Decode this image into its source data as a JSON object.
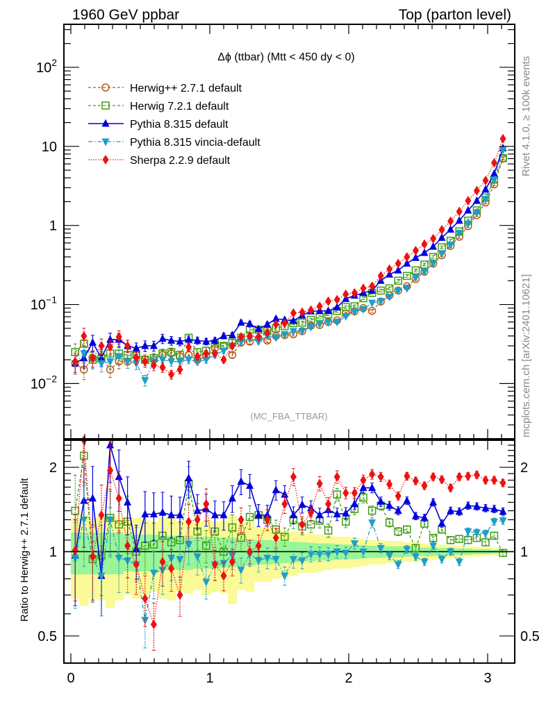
{
  "header": {
    "left": "1960 GeV ppbar",
    "right": "Top (parton level)"
  },
  "side_labels": {
    "rivet": "Rivet 4.1.0, ≥ 100k events",
    "mcplots": "mcplots.cern.ch [arXiv:2401.10621]"
  },
  "chart_data": [
    {
      "panel": "main",
      "type": "line",
      "title": "Δϕ (ttbar) (Mtt < 450 dy < 0)",
      "analysis_label": "(MC_FBA_TTBAR)",
      "xlabel": "",
      "ylabel": "",
      "xlim": [
        -0.05,
        3.195
      ],
      "ylim": [
        0.002,
        350
      ],
      "yscale": "log",
      "y_tick_labels": [
        "10^-2",
        "10^-1",
        "1",
        "10",
        "10^2"
      ],
      "y_ticks": [
        0.01,
        0.1,
        1,
        10,
        100
      ],
      "x_ticks": [
        0,
        1,
        2,
        3
      ],
      "x_tick_labels": [
        "0",
        "1",
        "2",
        "3"
      ],
      "legend_position": "top-left",
      "x": [
        0.031,
        0.094,
        0.157,
        0.22,
        0.283,
        0.346,
        0.408,
        0.471,
        0.534,
        0.597,
        0.66,
        0.723,
        0.785,
        0.848,
        0.911,
        0.974,
        1.037,
        1.1,
        1.162,
        1.225,
        1.288,
        1.351,
        1.414,
        1.476,
        1.539,
        1.602,
        1.665,
        1.728,
        1.791,
        1.853,
        1.916,
        1.979,
        2.042,
        2.105,
        2.168,
        2.231,
        2.293,
        2.356,
        2.419,
        2.482,
        2.545,
        2.608,
        2.67,
        2.733,
        2.796,
        2.859,
        2.922,
        2.985,
        3.047,
        3.11
      ],
      "series": [
        {
          "name": "Herwig++ 2.7.1 default",
          "color": "#b35a12",
          "marker": "open-circle",
          "linestyle": "dashed",
          "values": [
            0.018,
            0.015,
            0.021,
            0.022,
            0.015,
            0.019,
            0.019,
            0.023,
            0.02,
            0.02,
            0.023,
            0.024,
            0.022,
            0.023,
            0.02,
            0.022,
            0.028,
            0.03,
            0.023,
            0.033,
            0.034,
            0.037,
            0.035,
            0.04,
            0.041,
            0.042,
            0.046,
            0.054,
            0.055,
            0.06,
            0.063,
            0.077,
            0.082,
            0.09,
            0.083,
            0.109,
            0.13,
            0.15,
            0.17,
            0.21,
            0.26,
            0.33,
            0.42,
            0.55,
            0.72,
            0.98,
            1.35,
            1.95,
            3.3,
            7.0
          ]
        },
        {
          "name": "Herwig 7.2.1 default",
          "color": "#3f9b14",
          "marker": "open-square",
          "linestyle": "dashed",
          "values": [
            0.025,
            0.032,
            0.02,
            0.021,
            0.024,
            0.024,
            0.023,
            0.023,
            0.02,
            0.021,
            0.024,
            0.025,
            0.023,
            0.038,
            0.025,
            0.026,
            0.032,
            0.03,
            0.033,
            0.038,
            0.048,
            0.048,
            0.046,
            0.05,
            0.053,
            0.058,
            0.059,
            0.064,
            0.069,
            0.075,
            0.083,
            0.093,
            0.095,
            0.12,
            0.14,
            0.15,
            0.16,
            0.2,
            0.23,
            0.27,
            0.32,
            0.4,
            0.53,
            0.64,
            0.84,
            1.15,
            1.55,
            2.25,
            3.8,
            7.1
          ]
        },
        {
          "name": "Pythia 8.315 default",
          "color": "#0000dd",
          "marker": "filled-triangle-up",
          "linestyle": "solid",
          "values": [
            0.018,
            0.021,
            0.033,
            0.021,
            0.036,
            0.036,
            0.03,
            0.028,
            0.03,
            0.03,
            0.037,
            0.035,
            0.034,
            0.036,
            0.035,
            0.034,
            0.035,
            0.04,
            0.041,
            0.059,
            0.057,
            0.049,
            0.056,
            0.066,
            0.064,
            0.062,
            0.073,
            0.082,
            0.083,
            0.083,
            0.092,
            0.118,
            0.13,
            0.14,
            0.15,
            0.2,
            0.24,
            0.27,
            0.33,
            0.39,
            0.45,
            0.54,
            0.7,
            0.89,
            1.15,
            1.55,
            2.05,
            2.85,
            4.5,
            9.5
          ]
        },
        {
          "name": "Pythia 8.315 vincia-default",
          "color": "#1e9ec8",
          "marker": "filled-triangle-down",
          "linestyle": "dashdot",
          "values": [
            0.018,
            0.024,
            0.02,
            0.018,
            0.019,
            0.022,
            0.019,
            0.018,
            0.011,
            0.019,
            0.02,
            0.019,
            0.019,
            0.02,
            0.019,
            0.02,
            0.023,
            0.026,
            0.03,
            0.034,
            0.037,
            0.034,
            0.04,
            0.038,
            0.042,
            0.046,
            0.046,
            0.052,
            0.057,
            0.06,
            0.06,
            0.071,
            0.081,
            0.087,
            0.105,
            0.11,
            0.125,
            0.15,
            0.16,
            0.22,
            0.26,
            0.33,
            0.44,
            0.57,
            0.8,
            1.05,
            1.45,
            2.15,
            3.8,
            9.0
          ]
        },
        {
          "name": "Sherpa 2.2.9 default",
          "color": "#ee1111",
          "marker": "filled-diamond",
          "linestyle": "dotted",
          "values": [
            0.019,
            0.04,
            0.021,
            0.03,
            0.029,
            0.039,
            0.03,
            0.021,
            0.019,
            0.017,
            0.016,
            0.013,
            0.015,
            0.029,
            0.022,
            0.024,
            0.024,
            0.02,
            0.03,
            0.039,
            0.04,
            0.039,
            0.044,
            0.056,
            0.058,
            0.078,
            0.08,
            0.085,
            0.095,
            0.11,
            0.115,
            0.135,
            0.14,
            0.16,
            0.17,
            0.23,
            0.28,
            0.33,
            0.4,
            0.48,
            0.58,
            0.68,
            0.88,
            1.13,
            1.5,
            2.05,
            2.75,
            3.7,
            6.2,
            12.5
          ]
        }
      ]
    },
    {
      "panel": "ratio",
      "type": "line",
      "ylabel": "Ratio to Herwig++ 2.7.1 default",
      "xlim": [
        -0.05,
        3.195
      ],
      "ylim": [
        0.4,
        2.5
      ],
      "yscale": "log",
      "y_ticks": [
        0.5,
        1,
        2
      ],
      "y_tick_labels": [
        "0.5",
        "1",
        "2"
      ],
      "x_ticks": [
        0,
        1,
        2,
        3
      ],
      "x_tick_labels": [
        "0",
        "1",
        "2",
        "3"
      ],
      "reference_line": 1,
      "band_colors": {
        "inner": "#98f598",
        "outer": "#fafa96"
      },
      "band_inner_halfwidth": [
        0.17,
        0.17,
        0.17,
        0.17,
        0.17,
        0.17,
        0.15,
        0.15,
        0.15,
        0.15,
        0.14,
        0.14,
        0.14,
        0.14,
        0.13,
        0.13,
        0.13,
        0.12,
        0.12,
        0.11,
        0.11,
        0.1,
        0.1,
        0.095,
        0.09,
        0.085,
        0.08,
        0.075,
        0.07,
        0.07,
        0.065,
        0.06,
        0.06,
        0.055,
        0.05,
        0.05,
        0.045,
        0.045,
        0.04,
        0.04,
        0.035,
        0.035,
        0.03,
        0.03,
        0.025,
        0.025,
        0.02,
        0.02,
        0.015,
        0.012
      ],
      "band_outer_halfwidth": [
        0.32,
        0.36,
        0.32,
        0.33,
        0.37,
        0.33,
        0.3,
        0.32,
        0.3,
        0.28,
        0.32,
        0.33,
        0.28,
        0.29,
        0.27,
        0.3,
        0.28,
        0.29,
        0.35,
        0.27,
        0.28,
        0.22,
        0.22,
        0.2,
        0.19,
        0.18,
        0.16,
        0.16,
        0.15,
        0.14,
        0.13,
        0.13,
        0.12,
        0.11,
        0.1,
        0.1,
        0.09,
        0.09,
        0.08,
        0.08,
        0.07,
        0.065,
        0.06,
        0.055,
        0.05,
        0.045,
        0.04,
        0.035,
        0.03,
        0.02
      ],
      "series": [
        {
          "name": "Herwig 7.2.1 default",
          "color": "#3f9b14",
          "marker": "open-square",
          "linestyle": "dashed",
          "values": [
            1.4,
            2.2,
            0.94,
            0.97,
            1.32,
            1.25,
            1.28,
            1.0,
            1.05,
            1.06,
            1.14,
            1.08,
            1.1,
            1.75,
            1.18,
            1.05,
            1.18,
            1.0,
            1.22,
            1.12,
            1.33,
            1.35,
            1.3,
            1.2,
            1.13,
            1.3,
            1.23,
            1.25,
            1.29,
            1.19,
            1.6,
            1.28,
            1.42,
            1.56,
            1.4,
            1.46,
            1.27,
            1.18,
            1.2,
            1.03,
            1.26,
            1.12,
            1.2,
            1.1,
            1.11,
            1.1,
            1.12,
            1.08,
            1.14,
            0.99
          ]
        },
        {
          "name": "Pythia 8.315 default",
          "color": "#0000dd",
          "marker": "filled-triangle-up",
          "linestyle": "solid",
          "values": [
            0.97,
            1.52,
            1.55,
            0.82,
            2.4,
            1.85,
            1.5,
            1.02,
            1.36,
            1.36,
            1.38,
            1.35,
            1.35,
            1.83,
            1.4,
            1.42,
            1.35,
            1.35,
            1.55,
            1.78,
            1.72,
            1.35,
            1.35,
            1.66,
            1.6,
            1.35,
            1.47,
            1.43,
            1.35,
            1.41,
            1.36,
            1.37,
            1.48,
            1.69,
            1.69,
            1.51,
            1.46,
            1.4,
            1.52,
            1.34,
            1.32,
            1.5,
            1.26,
            1.4,
            1.39,
            1.46,
            1.45,
            1.43,
            1.42,
            1.39
          ]
        },
        {
          "name": "Pythia 8.315 vincia-default",
          "color": "#1e9ec8",
          "marker": "filled-triangle-down",
          "linestyle": "dashdot",
          "values": [
            0.95,
            1.3,
            0.95,
            0.82,
            1.3,
            0.95,
            0.93,
            0.9,
            0.57,
            0.84,
            0.86,
            0.95,
            0.94,
            1.06,
            0.96,
            0.78,
            0.9,
            0.91,
            0.97,
            0.86,
            0.98,
            0.93,
            0.95,
            0.94,
            0.82,
            0.94,
            0.93,
            0.98,
            0.98,
            0.98,
            1.0,
            0.99,
            1.07,
            1.0,
            1.27,
            1.03,
            0.97,
            0.9,
            1.02,
            0.96,
            0.92,
            1.05,
            0.94,
            1.0,
            0.92,
            1.18,
            1.17,
            1.16,
            1.28,
            1.29
          ]
        },
        {
          "name": "Sherpa 2.2.9 default",
          "color": "#ee1111",
          "marker": "filled-diamond",
          "linestyle": "dotted",
          "values": [
            1.01,
            2.6,
            0.96,
            1.35,
            1.95,
            1.55,
            1.05,
            0.9,
            0.68,
            0.55,
            0.92,
            0.87,
            0.7,
            1.28,
            1.3,
            1.48,
            0.9,
            0.82,
            0.92,
            1.3,
            1.0,
            1.05,
            1.3,
            1.12,
            1.48,
            1.85,
            1.25,
            1.38,
            1.75,
            1.48,
            1.85,
            1.62,
            1.62,
            1.8,
            1.89,
            1.85,
            1.74,
            1.58,
            1.86,
            1.79,
            1.72,
            1.85,
            1.81,
            1.69,
            1.85,
            1.86,
            1.88,
            1.8,
            1.8,
            1.76
          ]
        }
      ]
    }
  ]
}
